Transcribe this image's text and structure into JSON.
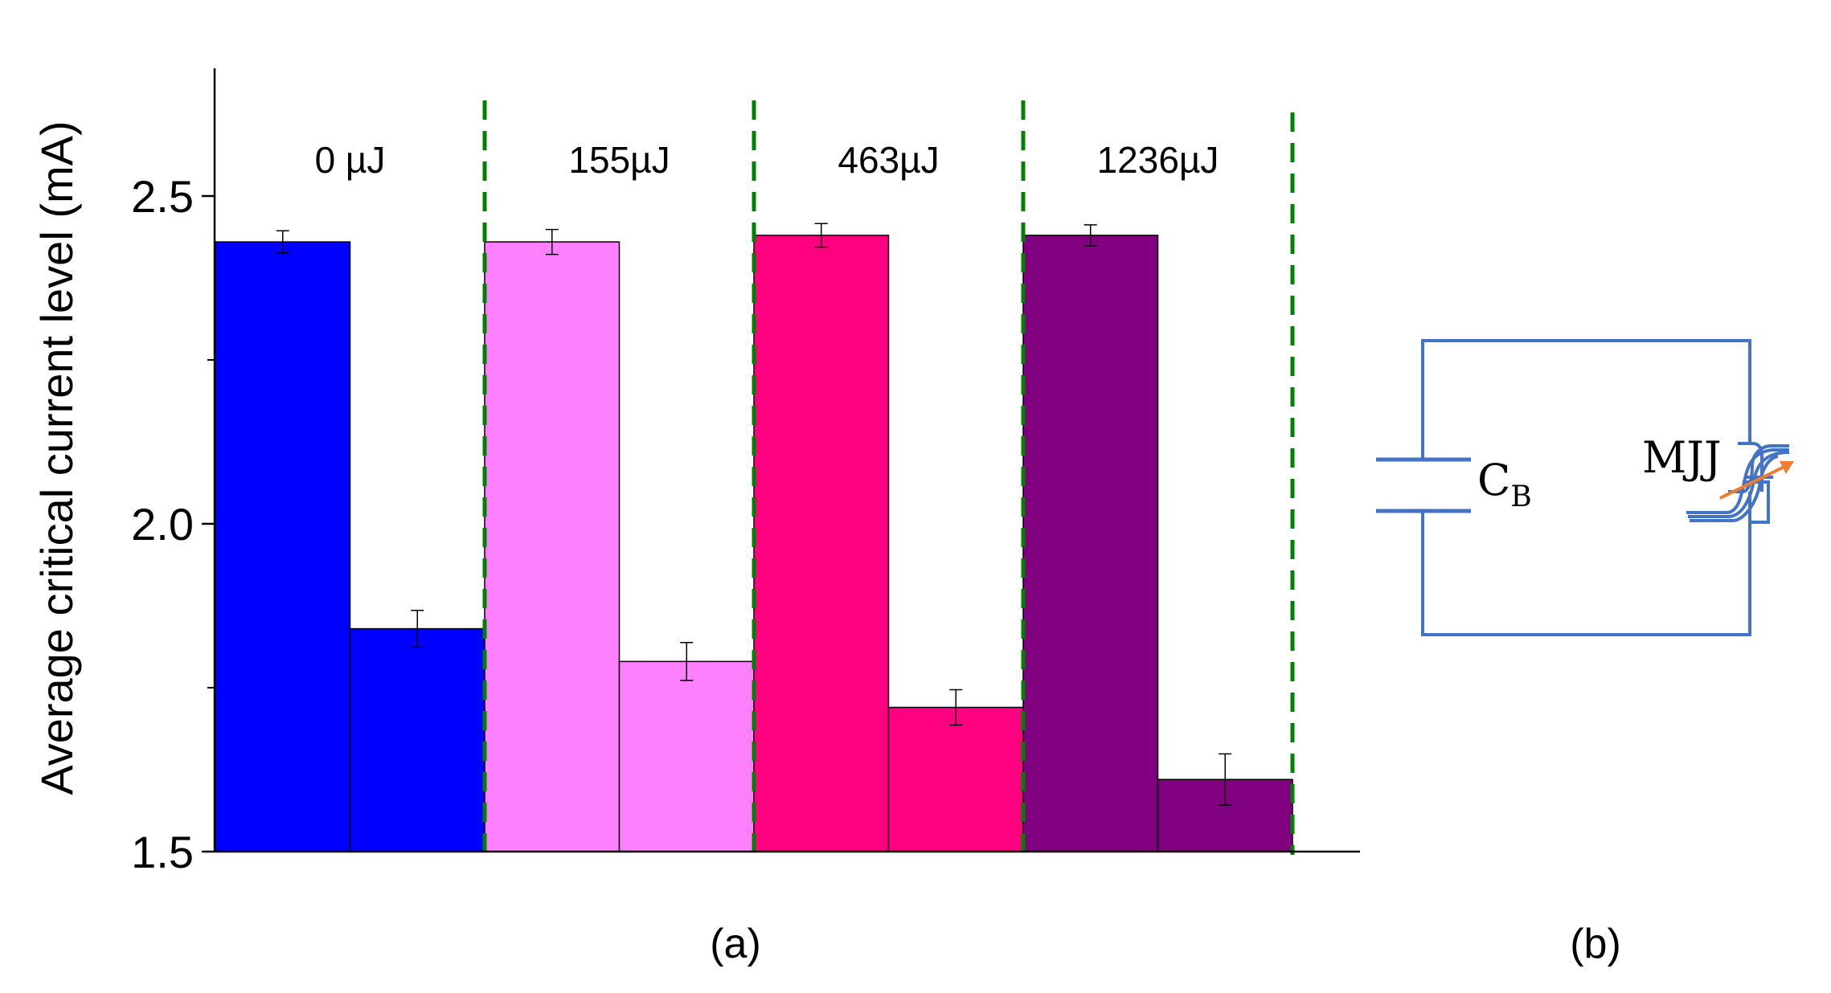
{
  "chart_data": {
    "type": "bar",
    "ylabel": "Average critical current level (mA)",
    "ylim": [
      1.5,
      2.7
    ],
    "yticks": [
      {
        "value": 1.5,
        "label": "1.5"
      },
      {
        "value": 2.0,
        "label": "2.0"
      },
      {
        "value": 2.5,
        "label": "2.5"
      }
    ],
    "minor_yticks": [
      1.75,
      2.25
    ],
    "groups": [
      {
        "label": "0 µJ",
        "color": "#0000ff",
        "values": [
          2.43,
          1.84
        ],
        "errors": [
          0.017,
          0.028
        ]
      },
      {
        "label": "155µJ",
        "color": "#ff80ff",
        "values": [
          2.43,
          1.79
        ],
        "errors": [
          0.019,
          0.029
        ]
      },
      {
        "label": "463µJ",
        "color": "#ff0080",
        "values": [
          2.44,
          1.72
        ],
        "errors": [
          0.018,
          0.027
        ]
      },
      {
        "label": "1236µJ",
        "color": "#800080",
        "values": [
          2.44,
          1.61
        ],
        "errors": [
          0.016,
          0.039
        ]
      }
    ],
    "separator_color": "#008000",
    "panel_label": "(a)"
  },
  "circuit": {
    "capacitor_label": "C",
    "capacitor_subscript": "B",
    "junction_label": "MJJ",
    "wire_color": "#4472c4",
    "arrow_color": "#ed7d31",
    "panel_label": "(b)"
  }
}
